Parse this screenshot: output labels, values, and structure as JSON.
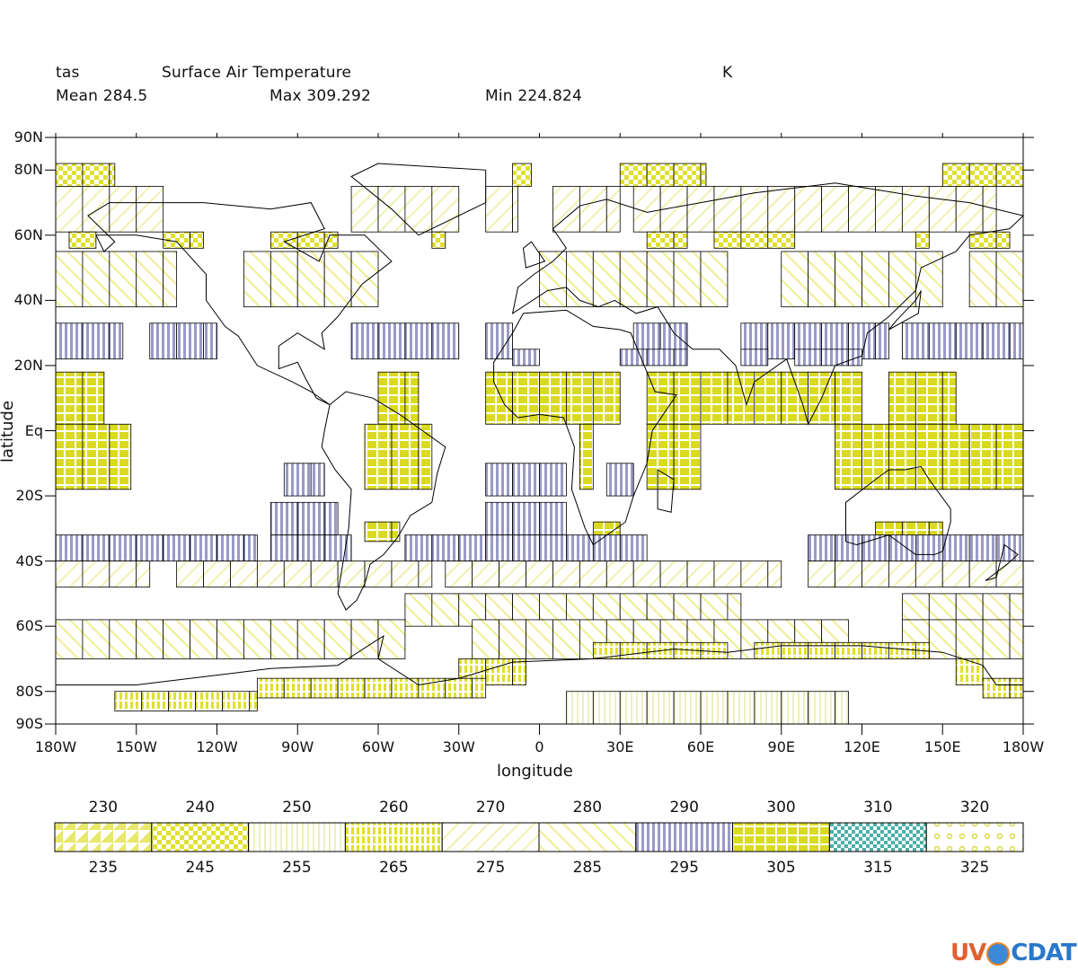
{
  "header": {
    "var_name": "tas",
    "long_name": "Surface Air Temperature",
    "units": "K",
    "mean_label": "Mean 284.5",
    "max_label": "Max 309.292",
    "min_label": "Min 224.824"
  },
  "axes": {
    "xlabel": "longitude",
    "ylabel": "latitude",
    "xticks": [
      "180W",
      "150W",
      "120W",
      "90W",
      "60W",
      "30W",
      "0",
      "30E",
      "60E",
      "90E",
      "120E",
      "150E",
      "180W"
    ],
    "yticks": [
      "90N",
      "80N",
      "60N",
      "40N",
      "20N",
      "Eq",
      "20S",
      "40S",
      "60S",
      "80S",
      "90S"
    ]
  },
  "legend": {
    "top_labels": [
      "230",
      "240",
      "250",
      "260",
      "270",
      "280",
      "290",
      "300",
      "310",
      "320"
    ],
    "bottom_labels": [
      "235",
      "245",
      "255",
      "265",
      "275",
      "285",
      "295",
      "305",
      "315",
      "325"
    ],
    "colors": [
      "#e8e86a",
      "#e0e030",
      "#eef0c0",
      "#e0e030",
      "#f0f0b0",
      "#f0f0a0",
      "#9a9ac8",
      "#dada22",
      "#4ab0a8",
      "#e8e860"
    ]
  },
  "chart_data": {
    "type": "heatmap",
    "title": "Surface Air Temperature",
    "units": "K",
    "xlabel": "longitude",
    "ylabel": "latitude",
    "xlim": [
      -180,
      180
    ],
    "ylim": [
      -90,
      90
    ],
    "bands": [
      {
        "lat": [
          75,
          82
        ],
        "class": 245,
        "segments": [
          [
            -180,
            -158
          ],
          [
            -10,
            -3
          ],
          [
            30,
            62
          ],
          [
            150,
            180
          ]
        ]
      },
      {
        "lat": [
          61,
          75
        ],
        "class": 275,
        "segments": [
          [
            -180,
            -140
          ],
          [
            -70,
            -30
          ],
          [
            -20,
            -8
          ],
          [
            5,
            30
          ],
          [
            35,
            170
          ]
        ]
      },
      {
        "lat": [
          56,
          61
        ],
        "class": 245,
        "segments": [
          [
            -175,
            -165
          ],
          [
            -140,
            -125
          ],
          [
            -100,
            -75
          ],
          [
            -40,
            -35
          ],
          [
            40,
            55
          ],
          [
            65,
            95
          ],
          [
            140,
            145
          ],
          [
            160,
            175
          ]
        ]
      },
      {
        "lat": [
          38,
          55
        ],
        "class": 285,
        "segments": [
          [
            -180,
            -135
          ],
          [
            -110,
            -60
          ],
          [
            0,
            70
          ],
          [
            90,
            150
          ],
          [
            160,
            180
          ]
        ]
      },
      {
        "lat": [
          22,
          33
        ],
        "class": 295,
        "segments": [
          [
            -180,
            -155
          ],
          [
            -145,
            -120
          ],
          [
            -70,
            -30
          ],
          [
            -20,
            -10
          ],
          [
            35,
            55
          ],
          [
            75,
            130
          ],
          [
            135,
            180
          ]
        ]
      },
      {
        "lat": [
          20,
          25
        ],
        "class": 295,
        "segments": [
          [
            -10,
            0
          ],
          [
            30,
            55
          ],
          [
            75,
            85
          ],
          [
            95,
            120
          ]
        ]
      },
      {
        "lat": [
          2,
          18
        ],
        "class": 305,
        "segments": [
          [
            -180,
            -162
          ],
          [
            -60,
            -45
          ],
          [
            -20,
            30
          ],
          [
            40,
            120
          ],
          [
            130,
            155
          ]
        ]
      },
      {
        "lat": [
          -18,
          2
        ],
        "class": 305,
        "segments": [
          [
            -180,
            -152
          ],
          [
            -65,
            -40
          ],
          [
            15,
            20
          ],
          [
            40,
            60
          ],
          [
            110,
            180
          ]
        ]
      },
      {
        "lat": [
          -20,
          -10
        ],
        "class": 295,
        "segments": [
          [
            -95,
            -80
          ],
          [
            -20,
            10
          ],
          [
            25,
            35
          ]
        ]
      },
      {
        "lat": [
          -32,
          -22
        ],
        "class": 295,
        "segments": [
          [
            -100,
            -75
          ],
          [
            -20,
            10
          ]
        ]
      },
      {
        "lat": [
          -34,
          -28
        ],
        "class": 305,
        "segments": [
          [
            -65,
            -52
          ],
          [
            20,
            30
          ],
          [
            125,
            150
          ]
        ]
      },
      {
        "lat": [
          -40,
          -32
        ],
        "class": 295,
        "segments": [
          [
            -180,
            -105
          ],
          [
            -100,
            -70
          ],
          [
            -50,
            40
          ],
          [
            100,
            180
          ]
        ]
      },
      {
        "lat": [
          -48,
          -40
        ],
        "class": 275,
        "segments": [
          [
            -180,
            -145
          ],
          [
            -135,
            -40
          ],
          [
            -35,
            90
          ],
          [
            100,
            180
          ]
        ]
      },
      {
        "lat": [
          -60,
          -50
        ],
        "class": 285,
        "segments": [
          [
            -50,
            75
          ],
          [
            135,
            180
          ]
        ]
      },
      {
        "lat": [
          -70,
          -58
        ],
        "class": 285,
        "segments": [
          [
            -180,
            -50
          ],
          [
            -25,
            115
          ],
          [
            135,
            180
          ]
        ]
      },
      {
        "lat": [
          -70,
          -65
        ],
        "class": 265,
        "segments": [
          [
            20,
            70
          ],
          [
            80,
            145
          ]
        ]
      },
      {
        "lat": [
          -78,
          -70
        ],
        "class": 265,
        "segments": [
          [
            -30,
            -5
          ],
          [
            155,
            165
          ]
        ]
      },
      {
        "lat": [
          -82,
          -76
        ],
        "class": 265,
        "segments": [
          [
            -105,
            -20
          ],
          [
            165,
            180
          ]
        ]
      },
      {
        "lat": [
          -90,
          -80
        ],
        "class": 255,
        "segments": [
          [
            10,
            115
          ]
        ]
      },
      {
        "lat": [
          -86,
          -80
        ],
        "class": 265,
        "segments": [
          [
            -158,
            -105
          ]
        ]
      }
    ]
  }
}
